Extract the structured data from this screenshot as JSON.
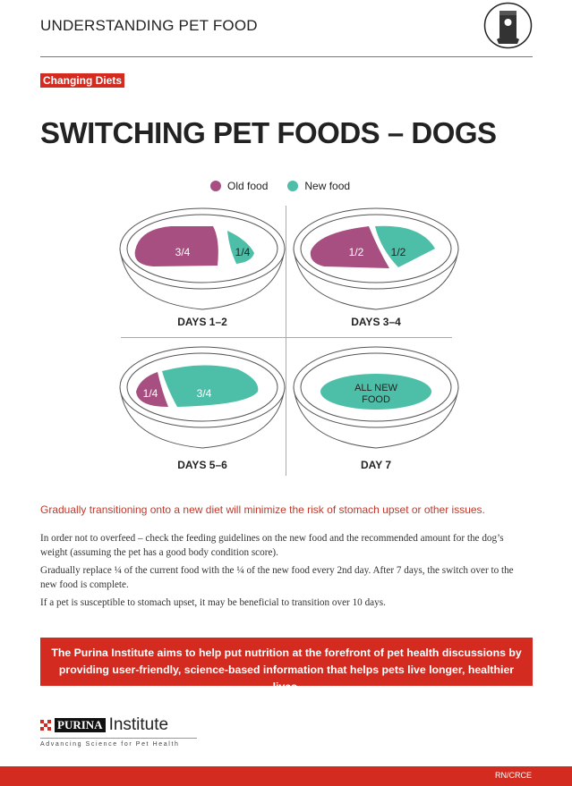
{
  "header": {
    "title": "UNDERSTANDING PET FOOD",
    "icon": "pet-food-bag-icon"
  },
  "tag": "Changing Diets",
  "title": "SWITCHING PET FOODS – DOGS",
  "legend": {
    "old": "Old food",
    "new": "New food",
    "old_color": "#a64f80",
    "new_color": "#4dbfa8"
  },
  "stages": [
    {
      "day": "DAYS 1–2",
      "old": "3/4",
      "new": "1/4"
    },
    {
      "day": "DAYS 3–4",
      "old": "1/2",
      "new": "1/2"
    },
    {
      "day": "DAYS 5–6",
      "old": "1/4",
      "new": "3/4"
    },
    {
      "day": "DAY 7",
      "new_line1": "ALL NEW",
      "new_line2": "FOOD"
    }
  ],
  "lead": "Gradually transitioning onto a new diet will minimize the risk of stomach upset or other issues.",
  "paragraphs": [
    "In order not to overfeed – check the feeding guidelines on the new food and the recommended amount for the dog’s weight (assuming the pet has a good body condition score).",
    "Gradually replace ¼ of the current food with the ¼ of the new food every 2nd day. After 7 days, the switch over to the new food is complete.",
    "If a pet is susceptible to stomach upset, it may be beneficial to transition over 10 days."
  ],
  "banner": "The Purina Institute aims to help put nutrition at the forefront of pet health discussions by providing user-friendly, science-based information that helps pets live longer, healthier lives.",
  "logo": {
    "brand": "PURINA",
    "name": "Institute",
    "tagline": "Advancing Science for Pet Health"
  },
  "footer": {
    "code": "RN/CRCE"
  }
}
